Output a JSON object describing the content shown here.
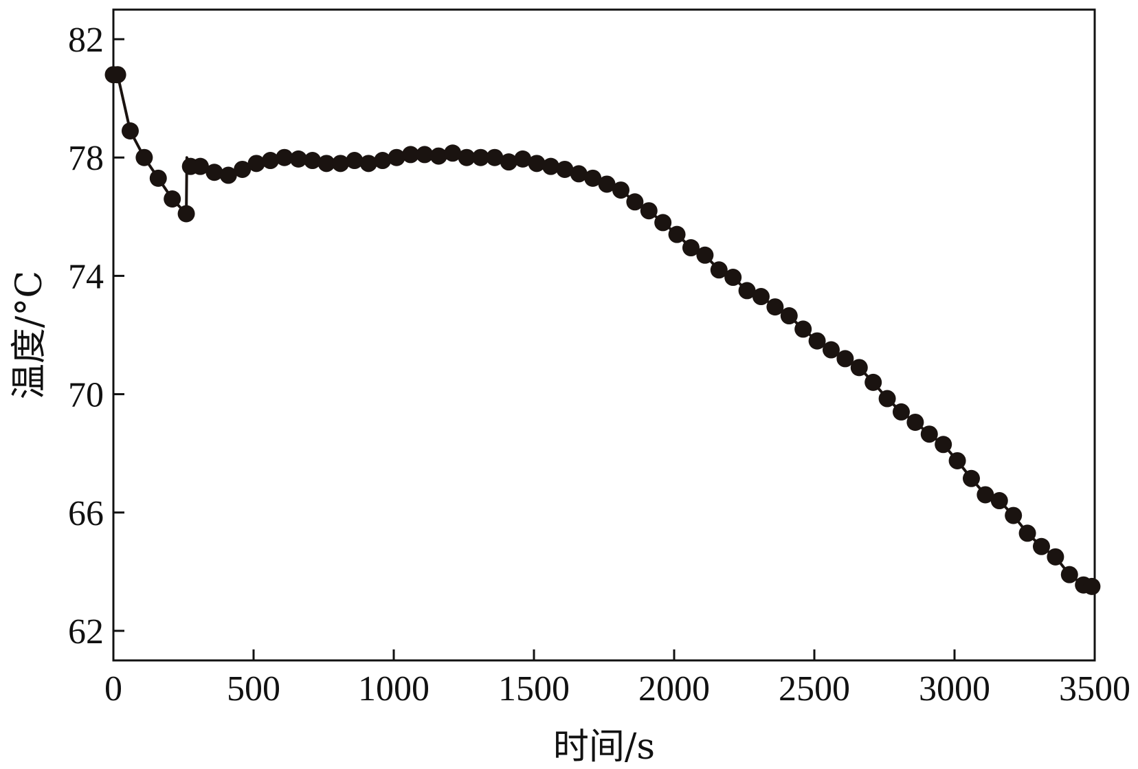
{
  "chart_data": {
    "type": "line",
    "title": "",
    "xlabel": "时间/s",
    "ylabel": "温度/°C",
    "xlim": [
      0,
      3500
    ],
    "ylim": [
      61,
      83
    ],
    "x_ticks": [
      0,
      500,
      1000,
      1500,
      2000,
      2500,
      3000,
      3500
    ],
    "y_ticks": [
      62,
      66,
      70,
      74,
      78,
      82
    ],
    "x_tick_labels": [
      "0",
      "500",
      "1000",
      "1500",
      "2000",
      "2500",
      "3000",
      "3500"
    ],
    "y_tick_labels": [
      "62",
      "66",
      "70",
      "74",
      "78",
      "82"
    ],
    "grid": false,
    "marker": "filled-circle",
    "line_color": "#1a1310",
    "series": [
      {
        "x": [
          0,
          15,
          60,
          110,
          160,
          210,
          260,
          262,
          275,
          310,
          360,
          410,
          460,
          510,
          560,
          610,
          660,
          710,
          760,
          810,
          860,
          910,
          960,
          1010,
          1060,
          1110,
          1160,
          1210,
          1260,
          1310,
          1360,
          1410,
          1460,
          1510,
          1560,
          1610,
          1660,
          1710,
          1760,
          1810,
          1860,
          1910,
          1960,
          2010,
          2060,
          2110,
          2160,
          2210,
          2260,
          2310,
          2360,
          2410,
          2460,
          2510,
          2560,
          2610,
          2660,
          2710,
          2760,
          2810,
          2860,
          2910,
          2960,
          3010,
          3060,
          3110,
          3160,
          3210,
          3260,
          3310,
          3360,
          3410,
          3460,
          3490
        ],
        "y": [
          80.8,
          80.8,
          78.9,
          78.0,
          77.3,
          76.6,
          76.1,
          78.0,
          77.7,
          77.7,
          77.5,
          77.4,
          77.6,
          77.8,
          77.9,
          78.0,
          77.95,
          77.9,
          77.8,
          77.8,
          77.9,
          77.8,
          77.9,
          78.0,
          78.1,
          78.1,
          78.05,
          78.15,
          78.0,
          78.0,
          78.0,
          77.85,
          77.95,
          77.8,
          77.7,
          77.6,
          77.45,
          77.3,
          77.1,
          76.9,
          76.5,
          76.2,
          75.8,
          75.4,
          74.95,
          74.7,
          74.2,
          73.95,
          73.5,
          73.3,
          72.95,
          72.65,
          72.2,
          71.8,
          71.5,
          71.2,
          70.9,
          70.4,
          69.85,
          69.4,
          69.05,
          68.65,
          68.3,
          67.75,
          67.15,
          66.6,
          66.4,
          65.9,
          65.3,
          64.85,
          64.5,
          63.9,
          63.55,
          63.5
        ]
      }
    ]
  }
}
